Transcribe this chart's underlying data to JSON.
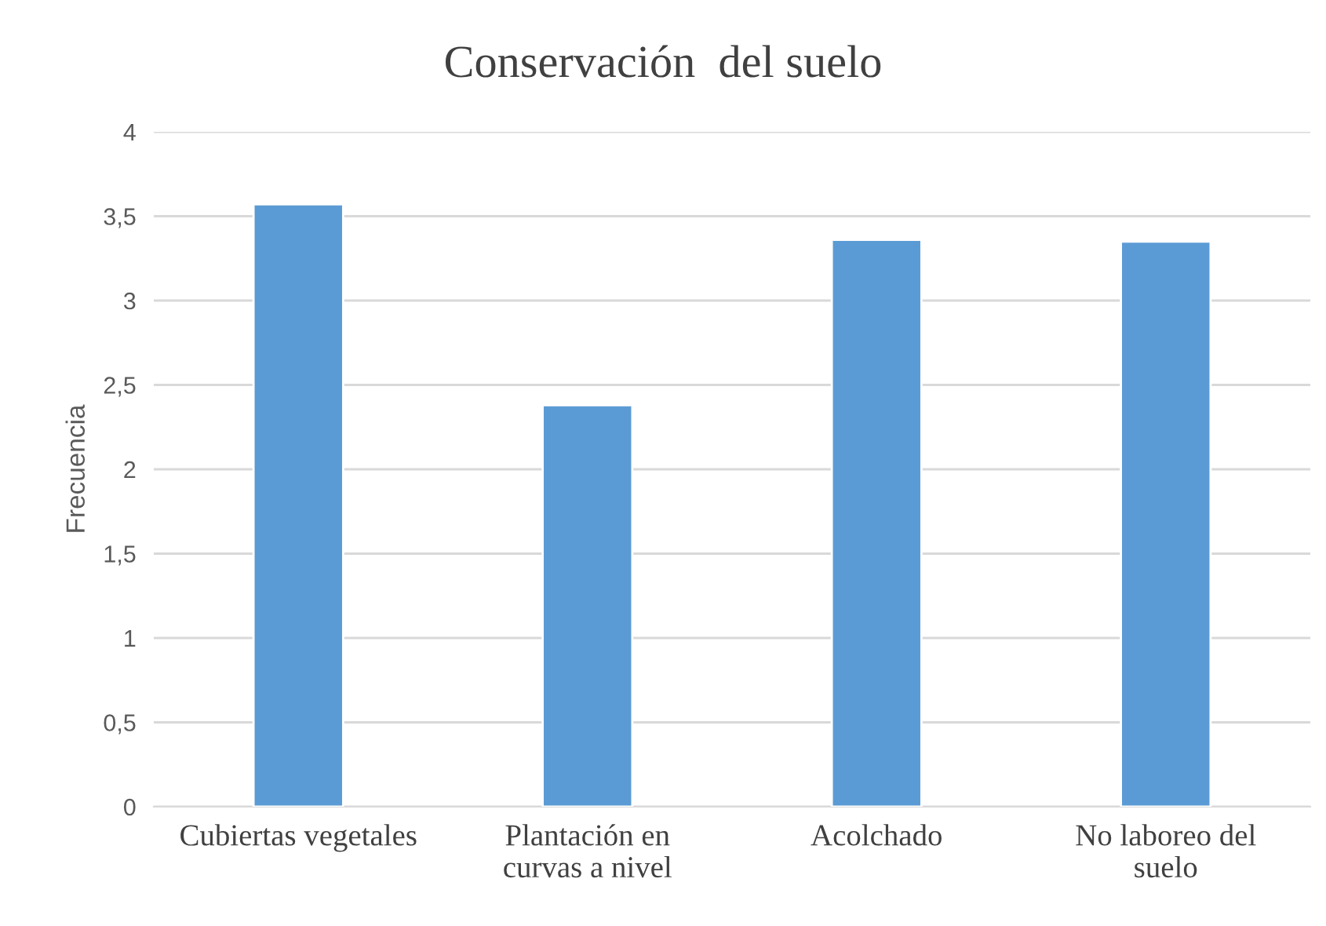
{
  "chart_data": {
    "type": "bar",
    "title": "Conservación  del suelo",
    "ylabel": "Frecuencia",
    "categories": [
      "Cubiertas vegetales",
      "Plantación en\ncurvas a nivel",
      "Acolchado",
      "No laboreo del\nsuelo"
    ],
    "values": [
      3.57,
      2.38,
      3.36,
      3.35
    ],
    "color": "#5b9bd5",
    "ylim": [
      0,
      4
    ],
    "yticks": [
      0,
      {
        "value": 0.5,
        "label": "0,5"
      },
      1,
      {
        "value": 1.5,
        "label": "1,5"
      },
      2,
      {
        "value": 2.5,
        "label": "2,5"
      },
      3,
      {
        "value": 3.5,
        "label": "3,5"
      },
      4
    ],
    "grid": "y"
  }
}
